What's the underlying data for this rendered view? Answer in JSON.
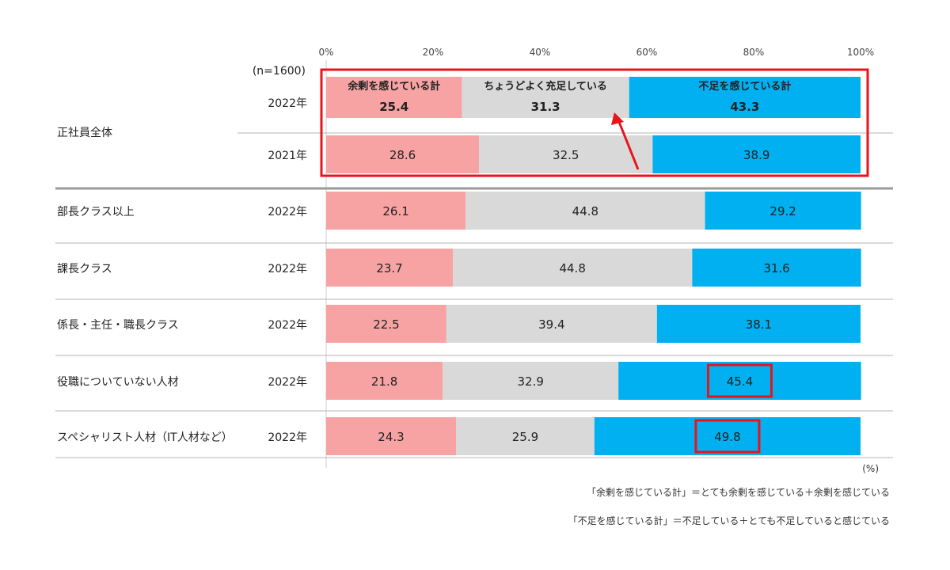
{
  "chart_data": {
    "type": "bar",
    "orientation": "horizontal",
    "stacked": true,
    "n_label": "(n=1600)",
    "unit": "(%)",
    "xlim": [
      0,
      100
    ],
    "x_ticks": [
      "0%",
      "20%",
      "40%",
      "60%",
      "80%",
      "100%"
    ],
    "series": [
      {
        "name": "余剰を感じている計",
        "color": "#f7a3a3"
      },
      {
        "name": "ちょうどよく充足している",
        "color": "#d9d9d9"
      },
      {
        "name": "不足を感じている計",
        "color": "#00b0f0"
      }
    ],
    "group_label": "正社員全体",
    "rows": [
      {
        "category": "",
        "year": "2022年",
        "values": [
          25.4,
          31.3,
          43.3
        ],
        "labels": [
          "25.4",
          "31.3",
          "43.3"
        ]
      },
      {
        "category": "",
        "year": "2021年",
        "values": [
          28.6,
          32.5,
          38.9
        ],
        "labels": [
          "28.6",
          "32.5",
          "38.9"
        ]
      },
      {
        "category": "部長クラス以上",
        "year": "2022年",
        "values": [
          26.1,
          44.8,
          29.2
        ],
        "labels": [
          "26.1",
          "44.8",
          "29.2"
        ]
      },
      {
        "category": "課長クラス",
        "year": "2022年",
        "values": [
          23.7,
          44.8,
          31.6
        ],
        "labels": [
          "23.7",
          "44.8",
          "31.6"
        ]
      },
      {
        "category": "係長・主任・職長クラス",
        "year": "2022年",
        "values": [
          22.5,
          39.4,
          38.1
        ],
        "labels": [
          "22.5",
          "39.4",
          "38.1"
        ]
      },
      {
        "category": "役職についていない人材",
        "year": "2022年",
        "values": [
          21.8,
          32.9,
          45.4
        ],
        "labels": [
          "21.8",
          "32.9",
          "45.4"
        ]
      },
      {
        "category": "スペシャリスト人材（IT人材など）",
        "year": "2022年",
        "values": [
          24.3,
          25.9,
          49.8
        ],
        "labels": [
          "24.3",
          "25.9",
          "49.8"
        ]
      }
    ],
    "notes": [
      "「余剰を感じている計」＝とても余剰を感じている＋余剰を感じている",
      "「不足を感じている計」＝不足している＋とても不足していると感じている"
    ],
    "highlight_color": "#e8141c"
  }
}
